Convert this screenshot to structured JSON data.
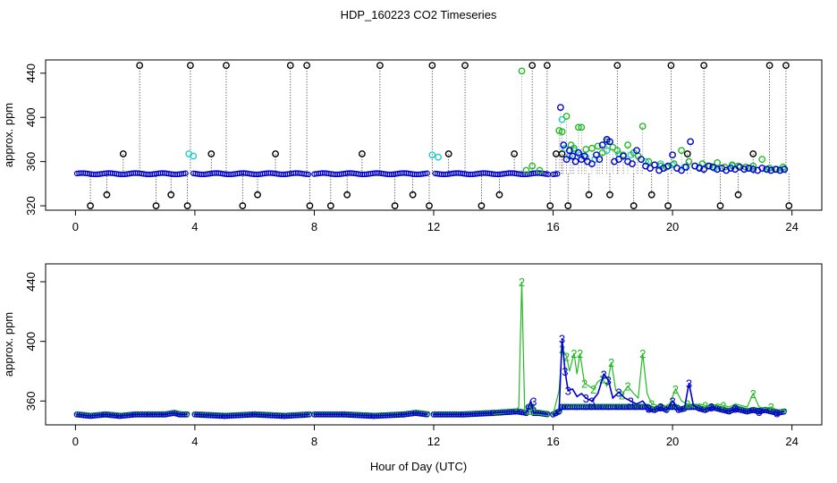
{
  "title": "HDP_160223  CO2 Timeseries",
  "xlabel": "Hour of Day (UTC)",
  "colors": {
    "black": "#000000",
    "blue": "#0000cc",
    "cyan": "#22cccc",
    "green": "#22bb22"
  },
  "chart_data": [
    {
      "type": "scatter",
      "ylabel": "approx. ppm",
      "xlim": [
        -1,
        25
      ],
      "ylim": [
        316,
        452
      ],
      "xticks": [
        0,
        4,
        8,
        12,
        16,
        20,
        24
      ],
      "yticks": [
        320,
        360,
        400,
        440
      ],
      "series": [
        {
          "color": "black",
          "x": [
            0.5,
            1.05,
            1.6,
            2.15,
            2.7,
            3.2,
            3.75,
            3.85,
            4.55,
            5.05,
            5.6,
            6.1,
            6.7,
            7.2,
            7.75,
            7.85,
            8.55,
            9.1,
            9.6,
            10.2,
            10.7,
            11.3,
            11.85,
            11.95,
            12.5,
            13.05,
            13.6,
            14.2,
            14.7,
            15.3,
            15.8,
            15.9,
            16.1,
            16.3,
            16.5,
            17.2,
            17.9,
            18.15,
            18.7,
            19.3,
            19.85,
            19.95,
            20.5,
            21.05,
            21.6,
            22.2,
            22.7,
            23.25,
            23.8,
            23.9
          ],
          "values": [
            320,
            330,
            367,
            447,
            320,
            330,
            320,
            447,
            367,
            447,
            320,
            330,
            367,
            447,
            447,
            320,
            320,
            330,
            367,
            447,
            320,
            330,
            320,
            447,
            367,
            447,
            320,
            330,
            367,
            447,
            447,
            320,
            367,
            367,
            320,
            330,
            330,
            447,
            320,
            330,
            320,
            447,
            367,
            447,
            320,
            330,
            367,
            447,
            447,
            320
          ],
          "stems_to": 349
        },
        {
          "color": "cyan",
          "x": [
            3.8,
            3.95,
            11.95,
            12.15,
            16.3,
            16.4,
            16.55,
            16.7,
            16.9,
            17.1,
            17.4,
            17.8,
            18.2,
            18.6,
            19.1,
            19.6,
            20.0,
            20.4,
            20.9,
            21.4,
            22.0,
            22.6,
            23.2,
            23.7
          ],
          "values": [
            367,
            365,
            366,
            364,
            398,
            372,
            365,
            370,
            366,
            364,
            362,
            370,
            367,
            366,
            360,
            358,
            357,
            355,
            355,
            354,
            356,
            354,
            353,
            353
          ]
        },
        {
          "color": "green",
          "x": [
            14.95,
            15.1,
            15.3,
            15.55,
            16.2,
            16.3,
            16.45,
            16.6,
            16.7,
            16.85,
            16.95,
            17.1,
            17.3,
            17.5,
            17.65,
            17.8,
            18.0,
            18.15,
            18.35,
            18.5,
            18.7,
            18.85,
            19.0,
            19.2,
            19.4,
            19.6,
            19.8,
            20.05,
            20.3,
            20.55,
            20.75,
            21.0,
            21.25,
            21.5,
            21.75,
            22.0,
            22.2,
            22.45,
            22.7,
            23.0,
            23.25,
            23.5,
            23.7
          ],
          "values": [
            442,
            352,
            356,
            352,
            388,
            387,
            401,
            375,
            372,
            391,
            391,
            371,
            372,
            374,
            368,
            378,
            373,
            370,
            366,
            375,
            368,
            365,
            392,
            360,
            357,
            356,
            355,
            358,
            370,
            360,
            356,
            358,
            356,
            359,
            355,
            357,
            356,
            355,
            356,
            362,
            354,
            353,
            355
          ]
        },
        {
          "color": "blue",
          "x": [
            16.25,
            16.35,
            16.45,
            16.55,
            16.65,
            16.75,
            16.85,
            16.95,
            17.05,
            17.15,
            17.3,
            17.45,
            17.55,
            17.65,
            17.8,
            17.9,
            18.05,
            18.2,
            18.35,
            18.5,
            18.65,
            18.8,
            18.95,
            19.1,
            19.25,
            19.4,
            19.55,
            19.7,
            19.85,
            20.0,
            20.15,
            20.3,
            20.45,
            20.6,
            20.75,
            20.9,
            21.05,
            21.2,
            21.35,
            21.5,
            21.65,
            21.8,
            21.95,
            22.1,
            22.25,
            22.4,
            22.55,
            22.7,
            22.85,
            23.0,
            23.15,
            23.3,
            23.45,
            23.6,
            23.75
          ],
          "values": [
            409,
            375,
            362,
            370,
            365,
            360,
            368,
            362,
            365,
            360,
            358,
            366,
            362,
            375,
            380,
            378,
            360,
            362,
            365,
            360,
            358,
            370,
            362,
            356,
            354,
            357,
            352,
            354,
            356,
            366,
            354,
            352,
            355,
            378,
            356,
            354,
            353,
            356,
            355,
            353,
            354,
            352,
            354,
            353,
            355,
            353,
            354,
            353,
            352,
            354,
            353,
            352,
            353,
            352,
            353
          ]
        }
      ],
      "baseline": {
        "value": 349,
        "segments": [
          [
            0.05,
            3.75
          ],
          [
            3.95,
            7.85
          ],
          [
            8.0,
            11.8
          ],
          [
            12.05,
            15.85
          ],
          [
            16.0,
            16.2
          ]
        ]
      }
    },
    {
      "type": "line",
      "ylabel": "approx. ppm",
      "xlim": [
        -1,
        25
      ],
      "ylim": [
        344,
        452
      ],
      "xticks": [
        0,
        4,
        8,
        12,
        16,
        20,
        24
      ],
      "yticks": [
        360,
        400,
        440
      ],
      "series": [
        {
          "color": "green",
          "label_char": "2",
          "segments": [
            {
              "x": [
                14.0,
                14.4,
                14.7,
                14.85,
                14.95,
                15.05,
                15.2,
                15.5,
                15.85
              ],
              "values": [
                351,
                352,
                353,
                356,
                440,
                352,
                351,
                351,
                350
              ]
            },
            {
              "x": [
                16.0,
                16.2,
                16.3,
                16.45,
                16.55,
                16.7,
                16.8,
                16.9,
                17.05,
                17.2,
                17.35,
                17.5,
                17.65,
                17.8,
                17.95,
                18.1,
                18.3,
                18.5,
                18.7,
                18.85,
                19.0,
                19.15,
                19.3,
                19.5,
                19.7,
                19.9,
                20.1,
                20.3,
                20.5,
                20.7,
                20.9,
                21.1,
                21.3,
                21.5,
                21.7,
                21.9,
                22.1,
                22.3,
                22.5,
                22.7,
                22.9,
                23.1,
                23.3,
                23.5,
                23.75
              ],
              "values": [
                351,
                367,
                395,
                390,
                380,
                392,
                378,
                392,
                372,
                370,
                368,
                373,
                375,
                370,
                386,
                367,
                364,
                370,
                365,
                362,
                392,
                365,
                358,
                357,
                356,
                358,
                368,
                360,
                358,
                356,
                358,
                357,
                356,
                358,
                357,
                356,
                358,
                357,
                356,
                365,
                356,
                355,
                356,
                354,
                354
              ]
            }
          ],
          "markers": [
            [
              14.95,
              440
            ],
            [
              15.3,
              356
            ],
            [
              16.3,
              395
            ],
            [
              16.45,
              390
            ],
            [
              16.7,
              392
            ],
            [
              16.9,
              392
            ],
            [
              17.05,
              372
            ],
            [
              17.35,
              368
            ],
            [
              17.65,
              375
            ],
            [
              17.95,
              386
            ],
            [
              18.3,
              364
            ],
            [
              18.5,
              370
            ],
            [
              19.0,
              392
            ],
            [
              19.3,
              358
            ],
            [
              20.1,
              368
            ],
            [
              20.5,
              358
            ],
            [
              21.1,
              357
            ],
            [
              21.7,
              357
            ],
            [
              22.7,
              365
            ],
            [
              23.3,
              356
            ]
          ]
        },
        {
          "color": "blue",
          "label_char": "3",
          "segments": [
            {
              "x": [
                0.05,
                0.5,
                1.0,
                1.5,
                2.0,
                2.5,
                3.0,
                3.3,
                3.5,
                3.75
              ],
              "values": [
                351,
                350,
                351,
                350,
                351,
                351,
                351,
                352,
                351,
                351
              ]
            },
            {
              "x": [
                4.0,
                5.0,
                6.0,
                7.0,
                7.85
              ],
              "values": [
                351,
                350,
                351,
                350,
                351
              ]
            },
            {
              "x": [
                8.0,
                9.0,
                10.0,
                11.0,
                11.4,
                11.8
              ],
              "values": [
                351,
                351,
                350,
                351,
                352,
                351
              ]
            },
            {
              "x": [
                12.0,
                13.0,
                14.0,
                14.8,
                15.1,
                15.25,
                15.35,
                15.5,
                15.85
              ],
              "values": [
                351,
                351,
                352,
                353,
                352,
                360,
                352,
                352,
                351
              ]
            },
            {
              "x": [
                16.0,
                16.1,
                16.2,
                16.3,
                16.4,
                16.5,
                16.65,
                16.8,
                16.95,
                17.1,
                17.3,
                17.5,
                17.7,
                17.85,
                18.0,
                18.2,
                18.4,
                18.6,
                18.8,
                19.0,
                19.2,
                19.4,
                19.6,
                19.8,
                20.0,
                20.2,
                20.4,
                20.55,
                20.7,
                20.9,
                21.1,
                21.3,
                21.5,
                21.7,
                21.9,
                22.1,
                22.3,
                22.5,
                22.7,
                22.9,
                23.1,
                23.3,
                23.5,
                23.75
              ],
              "values": [
                351,
                352,
                353,
                402,
                380,
                367,
                368,
                363,
                365,
                362,
                360,
                365,
                378,
                374,
                362,
                366,
                362,
                360,
                358,
                360,
                355,
                354,
                356,
                354,
                360,
                354,
                355,
                372,
                357,
                355,
                354,
                356,
                355,
                354,
                353,
                355,
                354,
                353,
                354,
                353,
                354,
                353,
                352,
                353
              ]
            }
          ],
          "markers": [
            [
              15.35,
              360
            ],
            [
              16.3,
              402
            ],
            [
              16.4,
              380
            ],
            [
              16.5,
              367
            ],
            [
              17.1,
              362
            ],
            [
              17.3,
              360
            ],
            [
              17.7,
              378
            ],
            [
              17.85,
              374
            ],
            [
              18.2,
              366
            ],
            [
              18.6,
              360
            ],
            [
              19.2,
              355
            ],
            [
              19.6,
              356
            ],
            [
              20.0,
              360
            ],
            [
              20.55,
              372
            ],
            [
              21.3,
              356
            ],
            [
              22.1,
              355
            ],
            [
              22.9,
              353
            ],
            [
              23.5,
              352
            ]
          ]
        }
      ]
    }
  ]
}
